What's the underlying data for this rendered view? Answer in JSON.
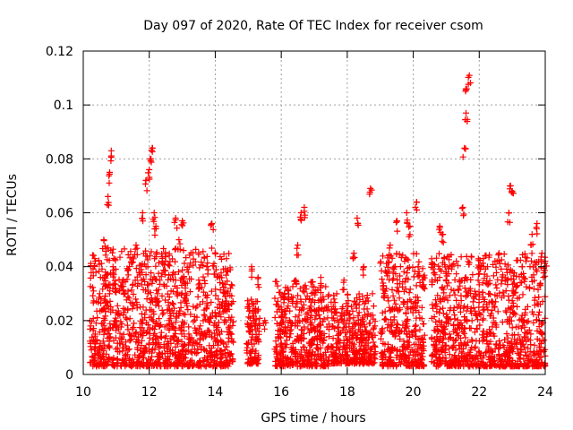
{
  "chart_data": {
    "type": "scatter",
    "title": "Day 097 of 2020, Rate Of TEC Index for receiver csom",
    "xlabel": "GPS time / hours",
    "ylabel": "ROTI / TECUs",
    "xlim": [
      10,
      24
    ],
    "ylim": [
      0,
      0.12
    ],
    "xticks": [
      10,
      12,
      14,
      16,
      18,
      20,
      22,
      24
    ],
    "xtick_labels": [
      "10",
      "12",
      "14",
      "16",
      "18",
      "20",
      "22",
      "24"
    ],
    "yticks": [
      0,
      0.02,
      0.04,
      0.06,
      0.08,
      0.1,
      0.12
    ],
    "ytick_labels": [
      "0",
      "0.02",
      "0.04",
      "0.06",
      "0.08",
      "0.1",
      "0.12"
    ],
    "grid": true,
    "marker": "+",
    "series": [
      {
        "name": "ROTI",
        "color": "#ff0000",
        "x": [
          10.35,
          10.5,
          10.62,
          10.75,
          10.8,
          10.85,
          10.9,
          11.0,
          11.2,
          11.4,
          11.6,
          11.8,
          11.9,
          12.0,
          12.05,
          12.1,
          12.15,
          12.2,
          12.25,
          12.4,
          12.6,
          12.8,
          12.9,
          13.0,
          13.1,
          13.2,
          13.5,
          13.8,
          13.9,
          14.1,
          14.3,
          14.45,
          15.1,
          15.3,
          15.5,
          16.0,
          16.2,
          16.5,
          16.6,
          16.7,
          16.9,
          17.2,
          17.6,
          17.9,
          18.2,
          18.3,
          18.5,
          18.7,
          19.1,
          19.3,
          19.5,
          19.8,
          19.9,
          20.1,
          20.15,
          20.3,
          20.6,
          20.8,
          20.9,
          21.1,
          21.4,
          21.5,
          21.55,
          21.6,
          21.62,
          21.7,
          22.0,
          22.3,
          22.6,
          22.9,
          22.95,
          23.0,
          23.3,
          23.6,
          23.75,
          23.9,
          24.0
        ],
        "y": [
          0.012,
          0.03,
          0.05,
          0.066,
          0.075,
          0.083,
          0.04,
          0.02,
          0.035,
          0.015,
          0.048,
          0.06,
          0.072,
          0.076,
          0.08,
          0.084,
          0.06,
          0.055,
          0.03,
          0.042,
          0.02,
          0.058,
          0.05,
          0.057,
          0.03,
          0.015,
          0.035,
          0.02,
          0.056,
          0.012,
          0.03,
          0.018,
          0.04,
          0.036,
          0.02,
          0.025,
          0.032,
          0.048,
          0.06,
          0.062,
          0.012,
          0.036,
          0.028,
          0.035,
          0.045,
          0.058,
          0.04,
          0.069,
          0.033,
          0.048,
          0.057,
          0.06,
          0.055,
          0.064,
          0.04,
          0.013,
          0.041,
          0.055,
          0.052,
          0.015,
          0.035,
          0.062,
          0.084,
          0.097,
          0.106,
          0.111,
          0.04,
          0.03,
          0.045,
          0.06,
          0.07,
          0.068,
          0.04,
          0.052,
          0.056,
          0.045,
          0.042
        ],
        "bands": [
          {
            "x": [
              10.2,
              14.55
            ],
            "y": [
              0.003,
              0.047
            ]
          },
          {
            "x": [
              14.95,
              15.35
            ],
            "y": [
              0.004,
              0.028
            ]
          },
          {
            "x": [
              15.8,
              17.45
            ],
            "y": [
              0.003,
              0.035
            ]
          },
          {
            "x": [
              17.5,
              18.85
            ],
            "y": [
              0.004,
              0.03
            ]
          },
          {
            "x": [
              19.0,
              20.35
            ],
            "y": [
              0.003,
              0.045
            ]
          },
          {
            "x": [
              20.55,
              24.0
            ],
            "y": [
              0.003,
              0.045
            ]
          }
        ]
      }
    ]
  }
}
